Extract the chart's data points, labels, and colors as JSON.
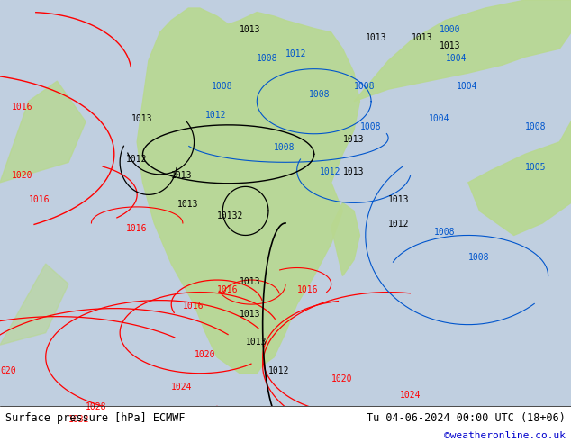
{
  "title_left": "Surface pressure [hPa] ECMWF",
  "title_right": "Tu 04-06-2024 00:00 UTC (18+06)",
  "credit": "©weatheronline.co.uk",
  "figsize": [
    6.34,
    4.9
  ],
  "dpi": 100
}
